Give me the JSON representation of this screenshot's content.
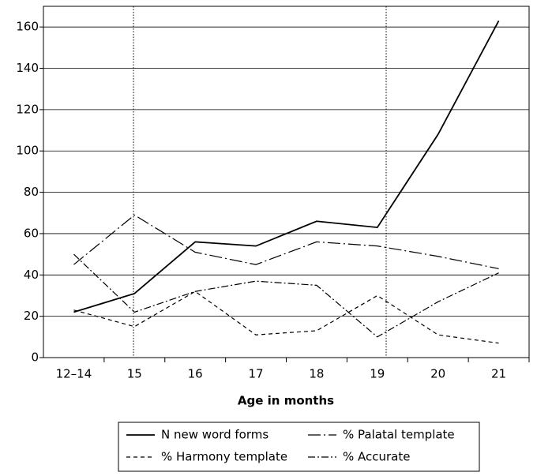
{
  "chart_data": {
    "type": "line",
    "xlabel": "Age in months",
    "categories": [
      "12–14",
      "15",
      "16",
      "17",
      "18",
      "19",
      "20",
      "21"
    ],
    "series": [
      {
        "name": "N new word forms",
        "color": "#000000",
        "dash": "solid",
        "values": [
          22,
          31,
          56,
          54,
          66,
          63,
          108,
          163
        ]
      },
      {
        "name": "% Palatal template",
        "color": "#000000",
        "dash": "longdashdot",
        "values": [
          45,
          69,
          51,
          45,
          56,
          54,
          49,
          43
        ]
      },
      {
        "name": "% Harmony template",
        "color": "#000000",
        "dash": "dashed",
        "values": [
          23,
          15,
          32,
          11,
          13,
          30,
          11,
          7
        ]
      },
      {
        "name": "% Accurate",
        "color": "#000000",
        "dash": "dashdot",
        "values": [
          50,
          22,
          32,
          37,
          35,
          10,
          27,
          41
        ]
      }
    ],
    "ylim": [
      0,
      170
    ],
    "yticks": [
      0,
      20,
      40,
      60,
      80,
      100,
      120,
      140,
      160
    ],
    "grid": true
  }
}
